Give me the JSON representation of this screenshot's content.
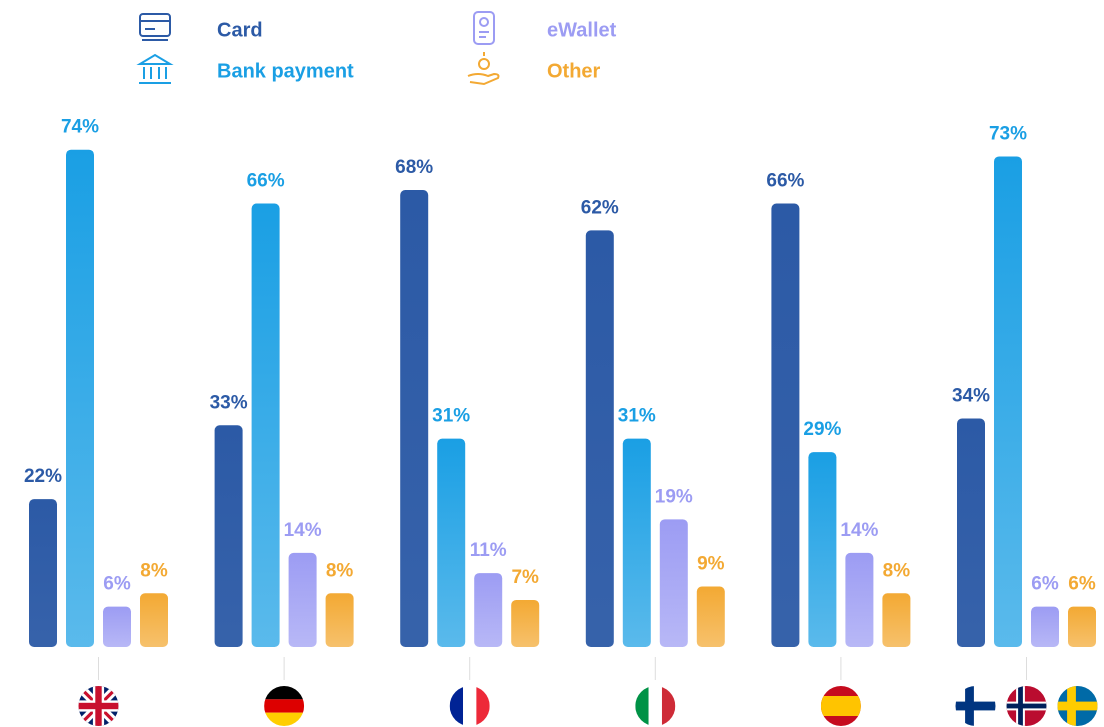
{
  "chart_data": {
    "type": "bar",
    "categories": [
      null,
      null,
      null,
      null,
      null,
      null
    ],
    "series": [
      {
        "name": "Card",
        "color": "#2c5aa6",
        "values": [
          22,
          33,
          68,
          62,
          66,
          34
        ],
        "value_labels": [
          "22%",
          "33%",
          "68%",
          "62%",
          "66%",
          "34%"
        ]
      },
      {
        "name": "Bank payment",
        "color": "#1a9fe4",
        "values": [
          74,
          66,
          31,
          31,
          29,
          73
        ],
        "value_labels": [
          "74%",
          "66%",
          "31%",
          "31%",
          "29%",
          "73%"
        ]
      },
      {
        "name": "eWallet",
        "color": "#9c9cf3",
        "values": [
          6,
          14,
          11,
          19,
          14,
          6
        ],
        "value_labels": [
          "6%",
          "14%",
          "11%",
          "19%",
          "14%",
          "6%"
        ]
      },
      {
        "name": "Other",
        "color": "#f3a933",
        "values": [
          8,
          8,
          7,
          9,
          8,
          6
        ],
        "value_labels": [
          "8%",
          "8%",
          "7%",
          "9%",
          "8%",
          "6%"
        ]
      }
    ]
  }
}
